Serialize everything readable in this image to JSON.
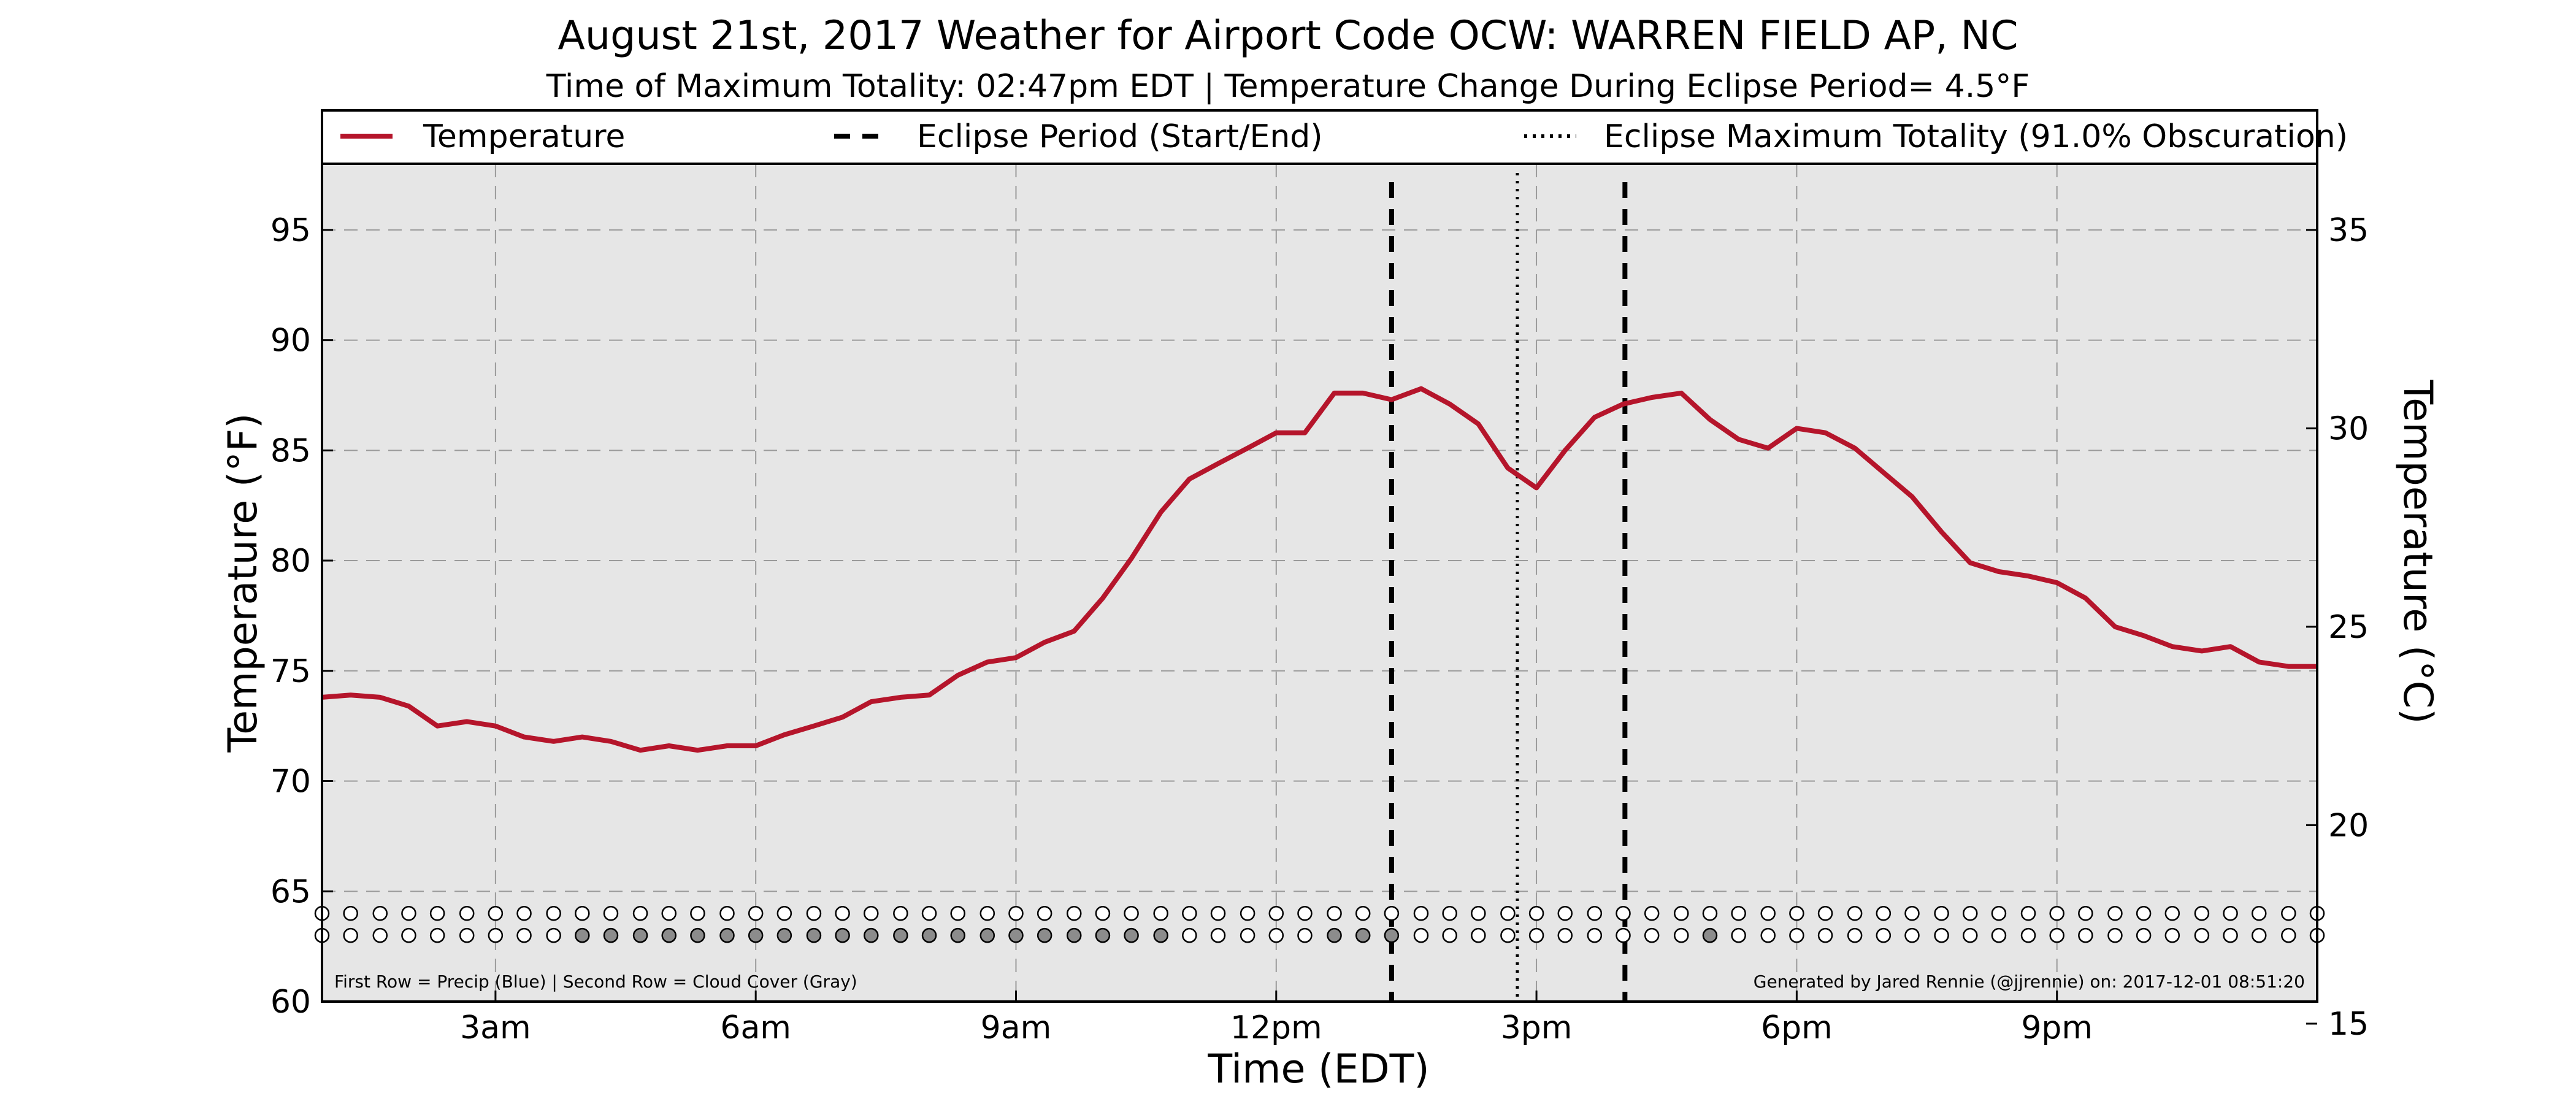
{
  "chart_data": {
    "type": "line",
    "title": "August 21st, 2017 Weather for Airport Code OCW: WARREN FIELD AP, NC",
    "subtitle": "Time of Maximum Totality: 02:47pm EDT | Temperature Change During Eclipse Period= 4.5°F",
    "xlabel": "Time (EDT)",
    "ylabel": "Temperature (°F)",
    "ylabel_right": "Temperature (°C)",
    "xlim": [
      1.0,
      24.0
    ],
    "ylim": [
      60,
      98
    ],
    "ylim_right_c": [
      15.56,
      36.67
    ],
    "x_ticks": [
      {
        "x": 3,
        "label": "3am"
      },
      {
        "x": 6,
        "label": "6am"
      },
      {
        "x": 9,
        "label": "9am"
      },
      {
        "x": 12,
        "label": "12pm"
      },
      {
        "x": 15,
        "label": "3pm"
      },
      {
        "x": 18,
        "label": "6pm"
      },
      {
        "x": 21,
        "label": "9pm"
      }
    ],
    "y_ticks": [
      60,
      65,
      70,
      75,
      80,
      85,
      90,
      95
    ],
    "y_ticks_right": [
      15,
      20,
      25,
      30,
      35
    ],
    "grid": true,
    "legend": {
      "placement": "top",
      "entries": [
        {
          "label": "Temperature",
          "style": "solid",
          "color": "#b5152b"
        },
        {
          "label": "Eclipse Period (Start/End)",
          "style": "dashed",
          "color": "#000000"
        },
        {
          "label": "Eclipse Maximum Totality (91.0% Obscuration)",
          "style": "dotted",
          "color": "#000000"
        }
      ]
    },
    "series": [
      {
        "name": "Temperature",
        "color": "#b5152b",
        "x": [
          1.0,
          1.33,
          1.67,
          2.0,
          2.33,
          2.67,
          3.0,
          3.33,
          3.67,
          4.0,
          4.33,
          4.67,
          5.0,
          5.33,
          5.67,
          6.0,
          6.33,
          6.67,
          7.0,
          7.33,
          7.67,
          8.0,
          8.33,
          8.67,
          9.0,
          9.33,
          9.67,
          10.0,
          10.33,
          10.67,
          11.0,
          11.33,
          11.67,
          12.0,
          12.33,
          12.67,
          13.0,
          13.33,
          13.67,
          14.0,
          14.33,
          14.67,
          15.0,
          15.33,
          15.67,
          16.0,
          16.33,
          16.67,
          17.0,
          17.33,
          17.67,
          18.0,
          18.33,
          18.67,
          19.0,
          19.33,
          19.67,
          20.0,
          20.33,
          20.67,
          21.0,
          21.33,
          21.67,
          22.0,
          22.33,
          22.67,
          23.0,
          23.33,
          23.67,
          24.0
        ],
        "values": [
          73.8,
          73.9,
          73.8,
          73.4,
          72.5,
          72.7,
          72.5,
          72.0,
          71.8,
          72.0,
          71.8,
          71.4,
          71.6,
          71.4,
          71.6,
          71.6,
          72.1,
          72.5,
          72.9,
          73.6,
          73.8,
          73.9,
          74.8,
          75.4,
          75.6,
          76.3,
          76.8,
          78.3,
          80.1,
          82.2,
          83.7,
          84.4,
          85.1,
          85.8,
          85.8,
          87.6,
          87.6,
          87.3,
          87.8,
          87.1,
          86.2,
          84.2,
          83.3,
          85.0,
          86.5,
          87.1,
          87.4,
          87.6,
          86.4,
          85.5,
          85.1,
          86.0,
          85.8,
          85.1,
          84.0,
          82.9,
          81.3,
          79.9,
          79.5,
          79.3,
          79.0,
          78.3,
          77.0,
          76.6,
          76.1,
          75.9,
          76.1,
          75.4,
          75.2,
          75.2
        ]
      }
    ],
    "eclipse_start_x": 13.33,
    "eclipse_max_x": 14.78,
    "eclipse_end_x": 16.02,
    "marker_rows": {
      "row1_precip_y": 64.0,
      "row2_cloud_y": 63.0,
      "row2_filled_x": [
        4.0,
        4.33,
        4.67,
        5.0,
        5.33,
        5.67,
        6.0,
        6.33,
        6.67,
        7.0,
        7.33,
        7.67,
        8.0,
        8.33,
        8.67,
        9.0,
        9.33,
        9.67,
        10.0,
        10.33,
        10.67,
        12.67,
        13.0,
        13.33,
        17.0
      ],
      "x": [
        1.0,
        1.33,
        1.67,
        2.0,
        2.33,
        2.67,
        3.0,
        3.33,
        3.67,
        4.0,
        4.33,
        4.67,
        5.0,
        5.33,
        5.67,
        6.0,
        6.33,
        6.67,
        7.0,
        7.33,
        7.67,
        8.0,
        8.33,
        8.67,
        9.0,
        9.33,
        9.67,
        10.0,
        10.33,
        10.67,
        11.0,
        11.33,
        11.67,
        12.0,
        12.33,
        12.67,
        13.0,
        13.33,
        13.67,
        14.0,
        14.33,
        14.67,
        15.0,
        15.33,
        15.67,
        16.0,
        16.33,
        16.67,
        17.0,
        17.33,
        17.67,
        18.0,
        18.33,
        18.67,
        19.0,
        19.33,
        19.67,
        20.0,
        20.33,
        20.67,
        21.0,
        21.33,
        21.67,
        22.0,
        22.33,
        22.67,
        23.0,
        23.33,
        23.67,
        24.0
      ]
    },
    "annotations": {
      "bottom_left": "First Row = Precip (Blue) | Second Row = Cloud Cover (Gray)",
      "bottom_right": "Generated by Jared Rennie (@jjrennie) on: 2017-12-01 08:51:20"
    }
  }
}
